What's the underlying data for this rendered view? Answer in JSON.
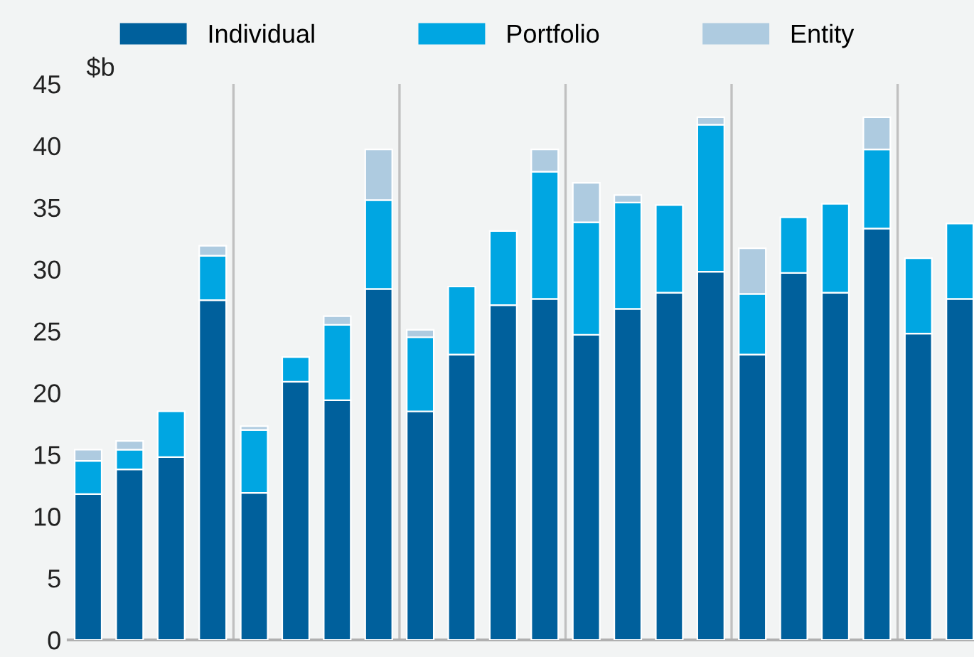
{
  "chart_data": {
    "type": "bar",
    "stacked": true,
    "ylabel": "$b",
    "categories": [
      null,
      null,
      null,
      null,
      null,
      null,
      null,
      null,
      null,
      null,
      null,
      null,
      null,
      null,
      null,
      null,
      null,
      null,
      null,
      null,
      null,
      null
    ],
    "series": [
      {
        "name": "Individual",
        "color": "#00609c",
        "values": [
          11.8,
          13.8,
          14.8,
          27.5,
          11.9,
          20.9,
          19.4,
          28.4,
          18.5,
          23.1,
          27.1,
          27.6,
          24.7,
          26.8,
          28.1,
          29.8,
          23.1,
          29.7,
          28.1,
          33.3,
          24.8,
          27.6
        ]
      },
      {
        "name": "Portfolio",
        "color": "#00a6e2",
        "values": [
          2.7,
          1.6,
          3.7,
          3.6,
          5.1,
          2.0,
          6.1,
          7.2,
          6.0,
          5.5,
          6.0,
          10.3,
          9.1,
          8.6,
          7.1,
          11.9,
          4.9,
          4.5,
          7.2,
          6.4,
          6.1,
          6.1
        ]
      },
      {
        "name": "Entity",
        "color": "#aecbe0",
        "values": [
          0.9,
          0.7,
          null,
          0.8,
          0.3,
          null,
          0.7,
          4.1,
          0.6,
          null,
          null,
          1.8,
          3.2,
          0.6,
          null,
          0.6,
          3.7,
          null,
          null,
          2.6,
          null,
          null
        ]
      }
    ],
    "ylim": [
      0,
      45
    ],
    "yticks": [
      0,
      5,
      10,
      15,
      20,
      25,
      30,
      35,
      40,
      45
    ],
    "grid": "x",
    "legend": "top"
  }
}
